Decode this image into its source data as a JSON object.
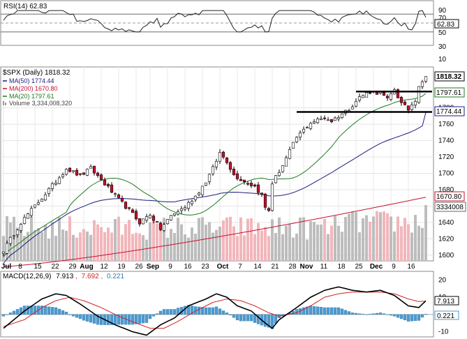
{
  "chart_data": {
    "type": "line",
    "rsi": {
      "label": "RSI(14) 62.83",
      "value": 62.83,
      "value_label": "62.83",
      "ticks": [
        "90",
        "70",
        "50",
        "30",
        "10"
      ],
      "ylim": [
        0,
        100
      ]
    },
    "price": {
      "title": "$SPX (Daily) 1818.32",
      "last": 1818.32,
      "last_label": "1818.32",
      "ylim": [
        1593,
        1830
      ],
      "ticks": [
        "1600",
        "1620",
        "1640",
        "1660",
        "1680",
        "1700",
        "1720",
        "1740",
        "1760",
        "1780"
      ],
      "tick_values": [
        1600,
        1620,
        1640,
        1660,
        1680,
        1700,
        1720,
        1740,
        1760,
        1780
      ],
      "ma50": {
        "label": "MA(50) 1774.44",
        "value_label": "1774.44",
        "last": 1774.44,
        "color": "#1b1b80"
      },
      "ma200": {
        "label": "MA(200) 1670.80",
        "value_label": "1670.80",
        "last": 1670.8,
        "color": "#c8102e"
      },
      "ma20": {
        "label": "MA(20) 1797.61",
        "value_label": "1797.61",
        "last": 1797.61,
        "color": "#1f7a1f"
      },
      "volume": {
        "label": "Volume 3,334,008,320",
        "value_label": "3334008",
        "last": 3334008320
      },
      "resistance": 1800,
      "support": 1775
    },
    "x_labels": [
      "Jul",
      "8",
      "15",
      "22",
      "29",
      "Aug",
      "12",
      "19",
      "26",
      "Sep",
      "9",
      "16",
      "23",
      "Oct",
      "7",
      "14",
      "21",
      "28",
      "Nov",
      "11",
      "18",
      "25",
      "Dec",
      "9",
      "16"
    ],
    "x_label_bold": [
      "Jul",
      "Aug",
      "Sep",
      "Oct",
      "Nov",
      "Dec"
    ],
    "macd": {
      "label_prefix": "MACD(12,26,9)",
      "macd": "7.913",
      "signal": "7.692",
      "hist": "0.221",
      "macd_label": "7.913",
      "hist_label": "0.221",
      "ticks": [
        "20",
        "10",
        "0",
        "-10"
      ],
      "ylim": [
        -13,
        25
      ]
    },
    "colors": {
      "up_candle": "#ffffff",
      "down_candle": "#c8102e",
      "macd_line": "#000000",
      "signal_line": "#d22020",
      "histogram": "#4b9bd3",
      "volume_up": "#bdbdbd",
      "volume_down": "#f2b6bb"
    }
  }
}
